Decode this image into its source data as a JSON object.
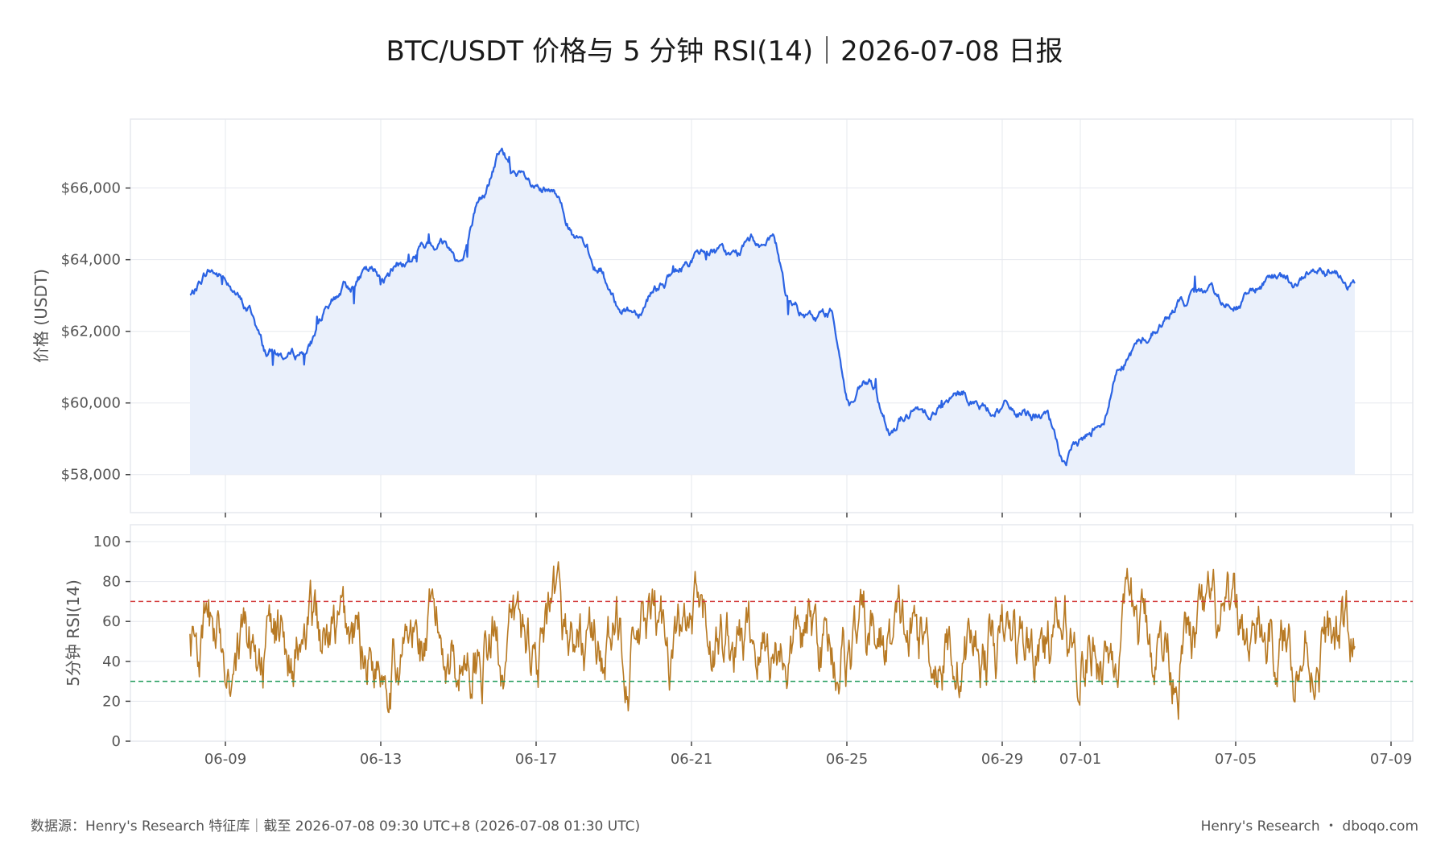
{
  "title": "BTC/USDT 价格与 5 分钟 RSI(14)｜2026-07-08 日报",
  "footer": {
    "source": "数据源：Henry's Research 特征库｜截至 2026-07-08 09:30 UTC+8 (2026-07-08 01:30 UTC)",
    "brand": "Henry's Research ・ dboqo.com"
  },
  "colors": {
    "price_line": "#2b63e3",
    "price_fill": "#eaf0fb",
    "rsi_line": "#b87a24",
    "overbought": "#d33a3a",
    "oversold": "#1f9a5a",
    "grid": "#e6e8ee",
    "axis_text": "#555555"
  },
  "chart_data": [
    {
      "type": "area",
      "name": "price",
      "ylabel": "价格 (USDT)",
      "ylim": [
        57500,
        67700
      ],
      "yticks": [
        58000,
        60000,
        62000,
        64000,
        66000
      ],
      "ytick_labels": [
        "$58,000",
        "$60,000",
        "$62,000",
        "$64,000",
        "$66,000"
      ],
      "grid": true,
      "x_start": "2026-06-08 09:30",
      "x_end": "2026-07-08 09:30",
      "series": [
        {
          "x": [
            "06-08",
            "06-08 12h",
            "06-09",
            "06-09 12h",
            "06-10",
            "06-10 12h",
            "06-11",
            "06-11 12h",
            "06-12",
            "06-12 12h",
            "06-13",
            "06-13 12h",
            "06-14",
            "06-14 12h",
            "06-15",
            "06-15 12h",
            "06-16",
            "06-16 12h",
            "06-17",
            "06-17 12h",
            "06-18",
            "06-18 12h",
            "06-19",
            "06-19 12h",
            "06-20",
            "06-20 12h",
            "06-21",
            "06-21 12h",
            "06-22",
            "06-22 12h",
            "06-23",
            "06-23 12h",
            "06-24",
            "06-24 12h",
            "06-25",
            "06-25 12h",
            "06-26",
            "06-26 12h",
            "06-27",
            "06-27 12h",
            "06-28",
            "06-28 12h",
            "06-29",
            "06-29 12h",
            "06-30",
            "06-30 12h",
            "07-01",
            "07-01 12h",
            "07-02",
            "07-02 12h",
            "07-03",
            "07-03 12h",
            "07-04",
            "07-04 12h",
            "07-05",
            "07-05 12h",
            "07-06",
            "07-06 12h",
            "07-07",
            "07-07 12h",
            "07-08"
          ],
          "values": [
            63000,
            63700,
            63400,
            62600,
            61400,
            61300,
            61500,
            62500,
            63200,
            63600,
            63500,
            63900,
            64300,
            64500,
            64000,
            65700,
            66900,
            66200,
            65800,
            65700,
            64500,
            63800,
            62700,
            62600,
            63300,
            63600,
            64100,
            64200,
            64000,
            64500,
            64400,
            62600,
            62300,
            62500,
            60000,
            60500,
            59300,
            59700,
            59800,
            60000,
            60200,
            59800,
            59900,
            59600,
            59700,
            58400,
            59000,
            59600,
            61200,
            61700,
            62200,
            62800,
            63000,
            62900,
            62800,
            63200,
            63400,
            63300,
            63900,
            63800,
            63400
          ]
        }
      ]
    },
    {
      "type": "line",
      "name": "rsi",
      "ylabel": "5分钟 RSI(14)",
      "ylim": [
        0,
        100
      ],
      "yticks": [
        0,
        20,
        40,
        60,
        80,
        100
      ],
      "ytick_labels": [
        "0",
        "20",
        "40",
        "60",
        "80",
        "100"
      ],
      "reference_lines": [
        70,
        30
      ],
      "grid": true,
      "x_ticks": [
        "06-09",
        "06-13",
        "06-17",
        "06-21",
        "06-25",
        "06-29",
        "07-01",
        "07-05",
        "07-09"
      ],
      "range_min": 8,
      "range_max": 95,
      "mean": 48
    }
  ]
}
